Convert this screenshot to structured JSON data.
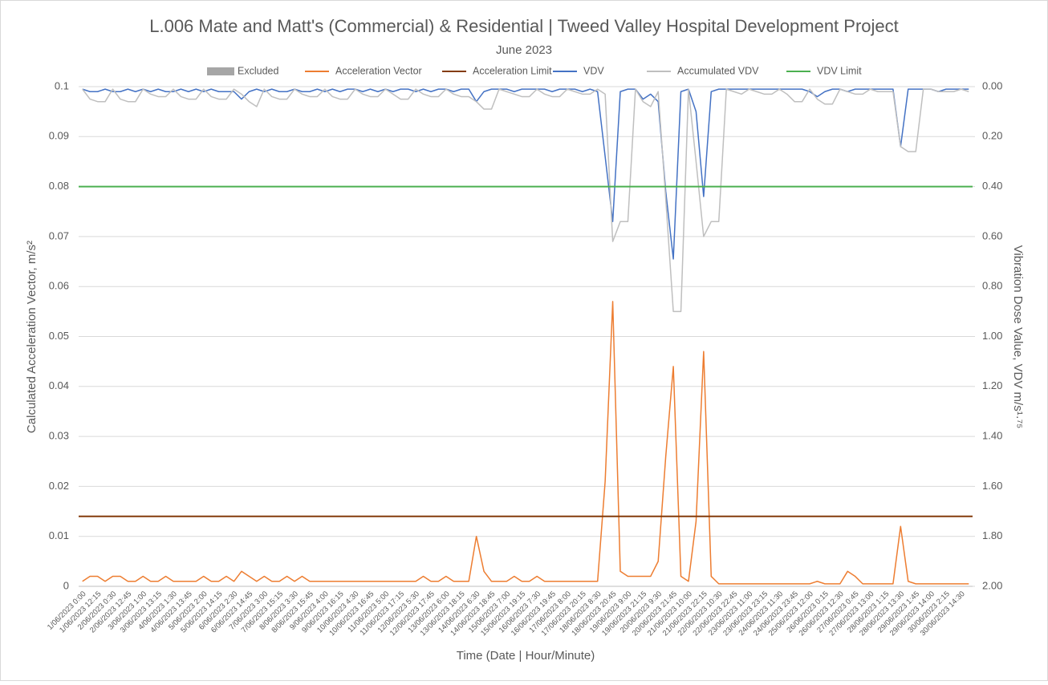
{
  "chart_data": {
    "type": "line",
    "title": "L.006 Mate and Matt's (Commercial) & Residential | Tweed Valley Hospital Development Project",
    "subtitle": "June 2023",
    "x_label": "Time (Date | Hour/Minute)",
    "y_label": "Calculated Acceleration Vector, m/s²",
    "y2_label": "Vibration Dose Value, VDV m/s¹·⁷⁵",
    "grid": true,
    "legend": "top",
    "ylim": [
      0,
      0.1
    ],
    "yticks": [
      0,
      0.01,
      0.02,
      0.03,
      0.04,
      0.05,
      0.06,
      0.07,
      0.08,
      0.09,
      0.1
    ],
    "y2lim": [
      0,
      2
    ],
    "y2_reversed": true,
    "y2ticks": [
      {
        "value": 0,
        "label": "0.00"
      },
      {
        "value": 0.2,
        "label": "0.20"
      },
      {
        "value": 0.4,
        "label": "0.40"
      },
      {
        "value": 0.6,
        "label": "0.60"
      },
      {
        "value": 0.8,
        "label": "0.80"
      },
      {
        "value": 1,
        "label": "1.00"
      },
      {
        "value": 1.2,
        "label": "1.20"
      },
      {
        "value": 1.4,
        "label": "1.40"
      },
      {
        "value": 1.6,
        "label": "1.60"
      },
      {
        "value": 1.8,
        "label": "1.80"
      },
      {
        "value": 2,
        "label": "2.00"
      }
    ],
    "categories": [
      "1/06/2023 0:00",
      null,
      "1/06/2023 12:15",
      null,
      "2/06/2023 0:30",
      null,
      "2/06/2023 12:45",
      null,
      "3/06/2023 1:00",
      null,
      "3/06/2023 13:15",
      null,
      "4/06/2023 1:30",
      null,
      "4/06/2023 13:45",
      null,
      "5/06/2023 2:00",
      null,
      "5/06/2023 14:15",
      null,
      "6/06/2023 2:30",
      null,
      "6/06/2023 14:45",
      null,
      "7/06/2023 3:00",
      null,
      "7/06/2023 15:15",
      null,
      "8/06/2023 3:30",
      null,
      "8/06/2023 15:45",
      null,
      "9/06/2023 4:00",
      null,
      "9/06/2023 16:15",
      null,
      "10/06/2023 4:30",
      null,
      "10/06/2023 16:45",
      null,
      "11/06/2023 5:00",
      null,
      "11/06/2023 17:15",
      null,
      "12/06/2023 5:30",
      null,
      "12/06/2023 17:45",
      null,
      "13/06/2023 6:00",
      null,
      "13/06/2023 18:15",
      null,
      "14/06/2023 6:30",
      null,
      "14/06/2023 18:45",
      null,
      "15/06/2023 7:00",
      null,
      "15/06/2023 19:15",
      null,
      "16/06/2023 7:30",
      null,
      "16/06/2023 19:45",
      null,
      "17/06/2023 8:00",
      null,
      "17/06/2023 20:15",
      null,
      "18/06/2023 8:30",
      null,
      "18/06/2023 20:45",
      null,
      "19/06/2023 9:00",
      null,
      "19/06/2023 21:15",
      null,
      "20/06/2023 9:30",
      null,
      "20/06/2023 21:45",
      null,
      "21/06/2023 10:00",
      null,
      "21/06/2023 22:15",
      null,
      "22/06/2023 10:30",
      null,
      "22/06/2023 22:45",
      null,
      "23/06/2023 11:00",
      null,
      "23/06/2023 23:15",
      null,
      "24/06/2023 11:30",
      null,
      "24/06/2023 23:45",
      null,
      "25/06/2023 12:00",
      null,
      "26/06/2023 0:15",
      null,
      "26/06/2023 12:30",
      null,
      "27/06/2023 0:45",
      null,
      "27/06/2023 13:00",
      null,
      "28/06/2023 1:15",
      null,
      "28/06/2023 13:30",
      null,
      "29/06/2023 1:45",
      null,
      "29/06/2023 14:00",
      null,
      "30/06/2023 2:15",
      null,
      "30/06/2023 14:30",
      null
    ],
    "series": [
      {
        "name": "Excluded",
        "type": "area",
        "color": "#a6a6a6",
        "values": [
          null,
          null,
          null,
          null,
          null,
          null,
          null,
          null,
          null,
          null,
          null,
          null,
          null,
          null,
          null,
          null,
          null,
          null,
          null,
          null,
          null,
          null,
          null,
          null,
          null,
          null,
          null,
          null,
          null,
          null,
          null,
          null,
          null,
          null,
          null,
          null,
          null,
          null,
          null,
          null,
          null,
          null,
          null,
          null,
          null,
          null,
          null,
          null,
          null,
          null,
          null,
          null,
          null,
          null,
          null,
          null,
          null,
          null,
          null,
          null,
          null,
          null,
          null,
          null,
          null,
          null,
          null,
          null,
          null,
          null,
          null,
          null,
          null,
          null,
          null,
          null,
          null,
          null,
          null,
          null,
          null,
          null,
          null,
          null,
          null,
          null,
          null,
          null,
          null,
          null,
          null,
          null,
          null,
          null,
          null,
          null,
          null,
          null,
          null,
          null,
          null,
          null,
          null,
          null,
          null,
          null,
          null,
          null,
          null,
          null,
          null,
          null,
          null,
          null,
          null,
          null,
          null,
          null
        ]
      },
      {
        "name": "Acceleration Vector",
        "color": "#ed7d31",
        "values": [
          0.001,
          0.002,
          0.002,
          0.001,
          0.002,
          0.002,
          0.001,
          0.001,
          0.002,
          0.001,
          0.001,
          0.002,
          0.001,
          0.001,
          0.001,
          0.001,
          0.002,
          0.001,
          0.001,
          0.002,
          0.001,
          0.003,
          0.002,
          0.001,
          0.002,
          0.001,
          0.001,
          0.002,
          0.001,
          0.002,
          0.001,
          0.001,
          0.001,
          0.001,
          0.001,
          0.001,
          0.001,
          0.001,
          0.001,
          0.001,
          0.001,
          0.001,
          0.001,
          0.001,
          0.001,
          0.002,
          0.001,
          0.001,
          0.002,
          0.001,
          0.001,
          0.001,
          0.01,
          0.003,
          0.001,
          0.001,
          0.001,
          0.002,
          0.001,
          0.001,
          0.002,
          0.001,
          0.001,
          0.001,
          0.001,
          0.001,
          0.001,
          0.001,
          0.001,
          0.021,
          0.057,
          0.003,
          0.002,
          0.002,
          0.002,
          0.002,
          0.005,
          0.026,
          0.044,
          0.002,
          0.001,
          0.013,
          0.047,
          0.002,
          0.0005,
          0.0005,
          0.0005,
          0.0005,
          0.0005,
          0.0005,
          0.0005,
          0.0005,
          0.0005,
          0.0005,
          0.0005,
          0.0005,
          0.0005,
          0.001,
          0.0005,
          0.0005,
          0.0005,
          0.003,
          0.002,
          0.0005,
          0.0005,
          0.0005,
          0.0005,
          0.0005,
          0.012,
          0.001,
          0.0005,
          0.0005,
          0.0005,
          0.0005,
          0.0005,
          0.0005,
          0.0005,
          0.0005
        ]
      },
      {
        "name": "Acceleration Limit",
        "color": "#843c0c",
        "value": 0.014
      },
      {
        "name": "VDV",
        "color": "#4472c4",
        "axis": "y2",
        "values": [
          0.01,
          0.02,
          0.02,
          0.01,
          0.02,
          0.02,
          0.01,
          0.02,
          0.01,
          0.02,
          0.01,
          0.02,
          0.02,
          0.01,
          0.02,
          0.01,
          0.02,
          0.01,
          0.02,
          0.02,
          0.02,
          0.05,
          0.02,
          0.01,
          0.02,
          0.01,
          0.02,
          0.02,
          0.01,
          0.02,
          0.02,
          0.01,
          0.02,
          0.01,
          0.02,
          0.01,
          0.01,
          0.02,
          0.01,
          0.02,
          0.01,
          0.02,
          0.01,
          0.01,
          0.02,
          0.01,
          0.02,
          0.01,
          0.01,
          0.02,
          0.01,
          0.01,
          0.06,
          0.02,
          0.01,
          0.01,
          0.01,
          0.02,
          0.01,
          0.01,
          0.01,
          0.01,
          0.02,
          0.01,
          0.01,
          0.01,
          0.02,
          0.01,
          0.02,
          0.28,
          0.54,
          0.02,
          0.01,
          0.01,
          0.05,
          0.03,
          0.06,
          0.42,
          0.69,
          0.02,
          0.01,
          0.1,
          0.44,
          0.02,
          0.01,
          0.01,
          0.01,
          0.01,
          0.01,
          0.01,
          0.01,
          0.01,
          0.01,
          0.01,
          0.01,
          0.01,
          0.02,
          0.04,
          0.02,
          0.01,
          0.01,
          0.02,
          0.01,
          0.01,
          0.01,
          0.01,
          0.01,
          0.01,
          0.24,
          0.01,
          0.01,
          0.01,
          0.01,
          0.02,
          0.01,
          0.01,
          0.01,
          0.01
        ]
      },
      {
        "name": "Accumulated VDV",
        "color": "#bfbfbf",
        "axis": "y2",
        "values": [
          0.01,
          0.05,
          0.06,
          0.06,
          0.01,
          0.05,
          0.06,
          0.06,
          0.01,
          0.03,
          0.04,
          0.04,
          0.01,
          0.04,
          0.05,
          0.05,
          0.01,
          0.04,
          0.05,
          0.05,
          0.01,
          0.03,
          0.06,
          0.08,
          0.01,
          0.04,
          0.05,
          0.05,
          0.01,
          0.03,
          0.04,
          0.04,
          0.01,
          0.04,
          0.05,
          0.05,
          0.01,
          0.03,
          0.04,
          0.04,
          0.01,
          0.03,
          0.05,
          0.05,
          0.01,
          0.03,
          0.04,
          0.04,
          0.01,
          0.03,
          0.04,
          0.04,
          0.06,
          0.09,
          0.09,
          0.01,
          0.02,
          0.03,
          0.04,
          0.04,
          0.01,
          0.03,
          0.04,
          0.04,
          0.01,
          0.02,
          0.03,
          0.03,
          0.01,
          0.03,
          0.62,
          0.54,
          0.54,
          0.01,
          0.06,
          0.08,
          0.02,
          0.45,
          0.9,
          0.9,
          0.01,
          0.3,
          0.6,
          0.54,
          0.54,
          0.01,
          0.02,
          0.03,
          0.01,
          0.02,
          0.03,
          0.03,
          0.01,
          0.03,
          0.06,
          0.06,
          0.01,
          0.05,
          0.07,
          0.07,
          0.01,
          0.02,
          0.03,
          0.03,
          0.01,
          0.02,
          0.02,
          0.02,
          0.24,
          0.26,
          0.26,
          0.01,
          0.01,
          0.02,
          0.02,
          0.02,
          0.01,
          0.02
        ]
      },
      {
        "name": "VDV Limit",
        "color": "#4cb050",
        "axis": "y2",
        "value": 0.4
      }
    ]
  }
}
